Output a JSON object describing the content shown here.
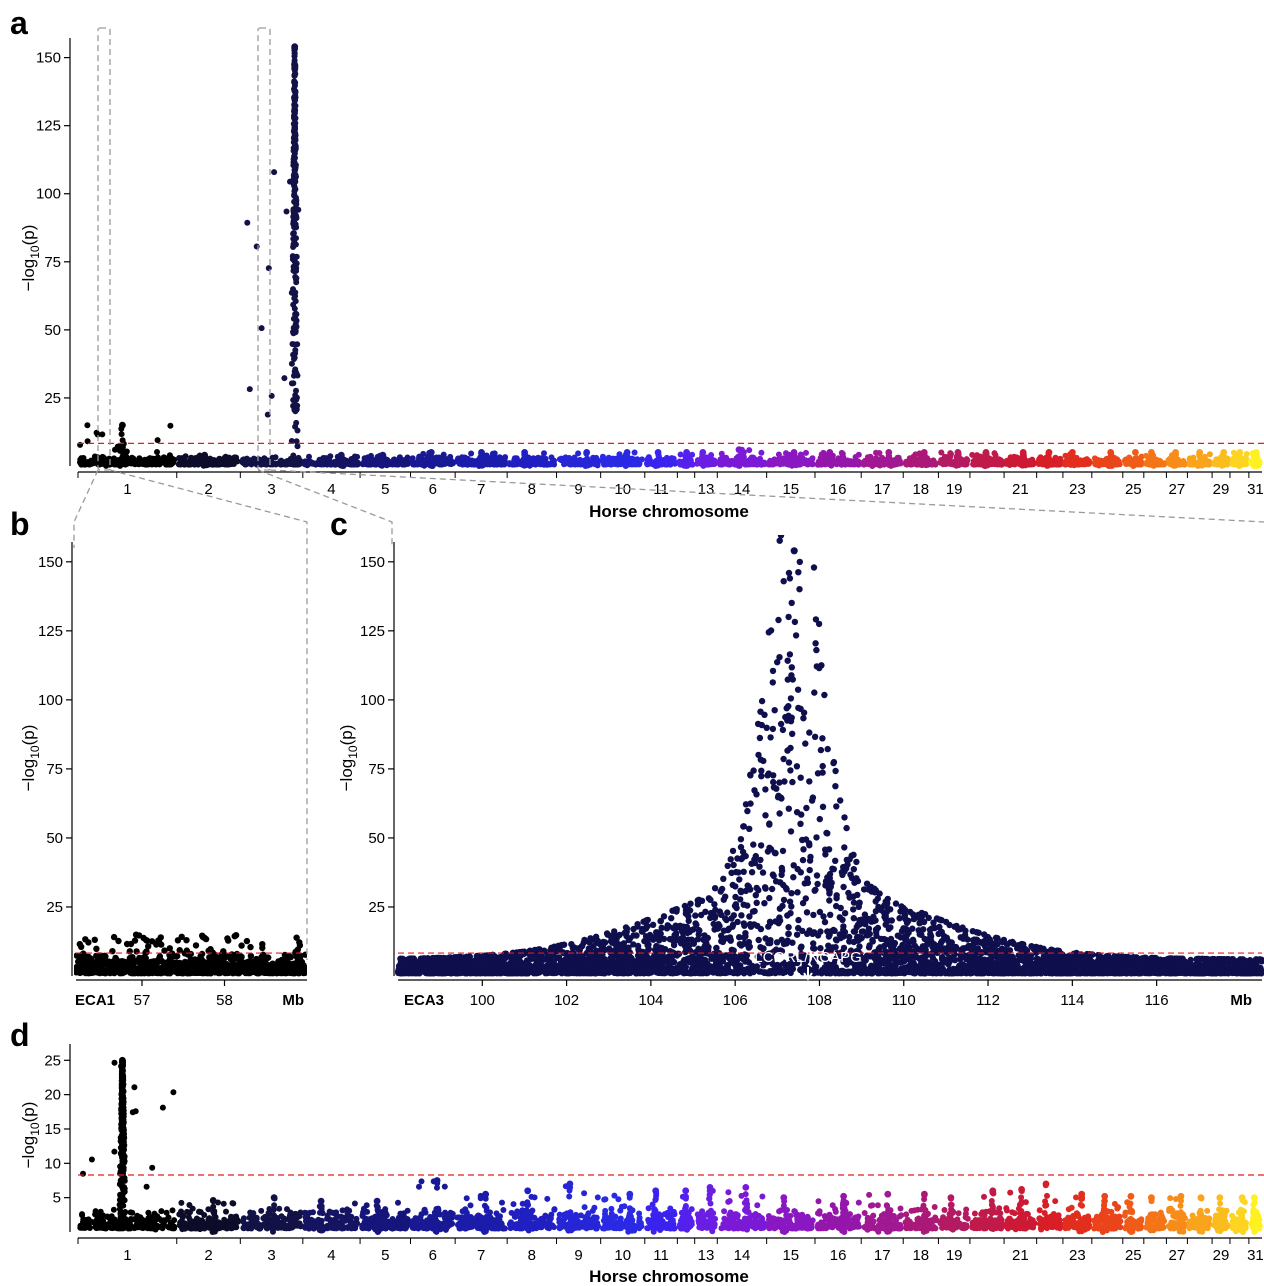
{
  "chart_data": [
    {
      "panel": "a",
      "type": "scatter",
      "subtype": "manhattan",
      "xlabel": "Horse chromosome",
      "ylabel": "−log10(p)",
      "ylim": [
        0,
        155
      ],
      "yticks": [
        25,
        50,
        75,
        100,
        125,
        150
      ],
      "threshold": 8.3,
      "chromosome_tick_labels": [
        "1",
        "2",
        "3",
        "4",
        "5",
        "6",
        "7",
        "8",
        "9",
        "10",
        "11",
        "13",
        "14",
        "15",
        "16",
        "17",
        "18",
        "19",
        "21",
        "23",
        "25",
        "27",
        "29",
        "31"
      ],
      "chromosome_max_log10p": [
        15,
        4,
        154,
        4,
        4,
        5,
        5,
        5,
        5,
        5,
        5,
        5,
        5,
        6,
        5,
        5,
        5,
        5,
        5,
        5,
        5,
        5,
        5,
        5,
        5,
        5,
        5,
        5,
        5,
        5,
        5
      ],
      "highlight_regions": [
        "1",
        "3"
      ]
    },
    {
      "panel": "b",
      "type": "scatter",
      "region_label": "ECA1",
      "unit_label": "Mb",
      "xticks": [
        57,
        58
      ],
      "xlim": [
        56.2,
        59.0
      ],
      "ylabel": "−log10(p)",
      "ylim": [
        0,
        155
      ],
      "yticks": [
        25,
        50,
        75,
        100,
        125,
        150
      ],
      "threshold": 8.3,
      "max_log10p": 15
    },
    {
      "panel": "c",
      "type": "scatter",
      "region_label": "ECA3",
      "unit_label": "Mb",
      "xticks": [
        100,
        102,
        104,
        106,
        108,
        110,
        112,
        114,
        116
      ],
      "xlim": [
        98.0,
        118.5
      ],
      "ylabel": "−log10(p)",
      "ylim": [
        0,
        155
      ],
      "yticks": [
        25,
        50,
        75,
        100,
        125,
        150
      ],
      "threshold": 8.3,
      "peak_position_mb": 107.4,
      "max_log10p": 154,
      "annotation": "LCORL/NCAPG",
      "annotation_position_mb": 107.5
    },
    {
      "panel": "d",
      "type": "scatter",
      "subtype": "manhattan",
      "xlabel": "Horse chromosome",
      "ylabel": "−log10(p)",
      "ylim": [
        0,
        26
      ],
      "yticks": [
        5,
        10,
        15,
        20,
        25
      ],
      "threshold": 8.3,
      "chromosome_tick_labels": [
        "1",
        "2",
        "3",
        "4",
        "5",
        "6",
        "7",
        "8",
        "9",
        "10",
        "11",
        "13",
        "14",
        "15",
        "16",
        "17",
        "18",
        "19",
        "21",
        "23",
        "25",
        "27",
        "29",
        "31"
      ],
      "chromosome_max_log10p": [
        25,
        4.6,
        5,
        4.5,
        4.5,
        7.5,
        5.5,
        6,
        7,
        5.5,
        6,
        6,
        6.5,
        6.5,
        5,
        5.2,
        5.5,
        5.5,
        5,
        6,
        6.2,
        7,
        5.5,
        5.2,
        5.2,
        5,
        5.2,
        5,
        5,
        5,
        5
      ]
    }
  ],
  "chromosome_colors": [
    "#000000",
    "#0d0d2a",
    "#121247",
    "#141463",
    "#15157b",
    "#191995",
    "#1c1cab",
    "#2020c2",
    "#2626d6",
    "#2a2ae4",
    "#3b22ee",
    "#5420ee",
    "#6a1ee4",
    "#7b1ad6",
    "#8a18c2",
    "#9416ab",
    "#a01892",
    "#aa1878",
    "#b41a62",
    "#c01a4a",
    "#cc1a36",
    "#d81e26",
    "#e22e1e",
    "#ea441a",
    "#f05c18",
    "#f47418",
    "#f78c1a",
    "#f9a41c",
    "#fbbc1e",
    "#fdd420",
    "#fff020"
  ]
}
